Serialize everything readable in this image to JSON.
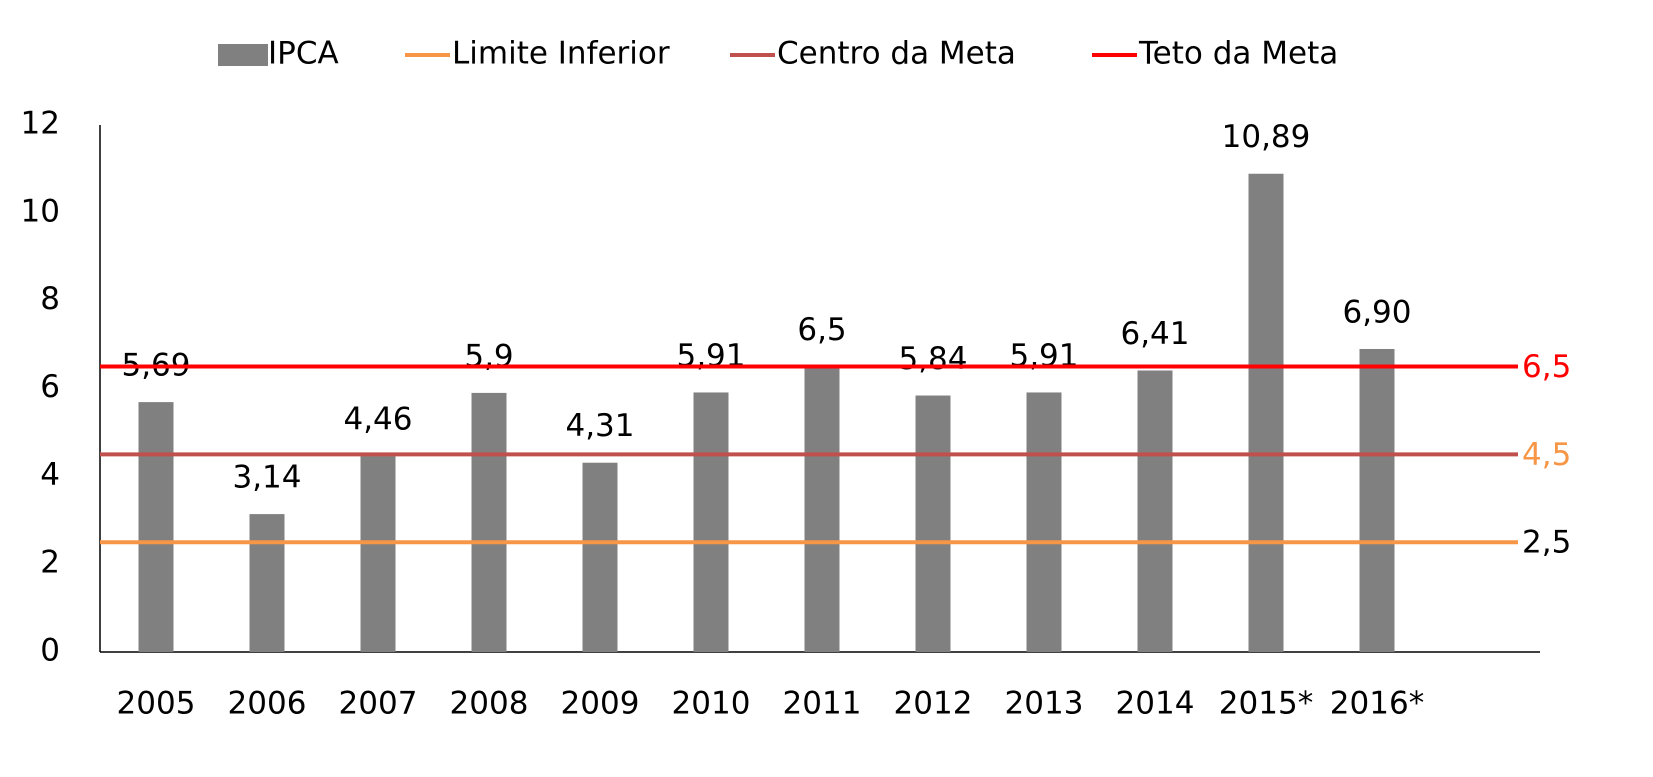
{
  "chart_data": {
    "type": "bar-line",
    "categories": [
      "2005",
      "2006",
      "2007",
      "2008",
      "2009",
      "2010",
      "2011",
      "2012",
      "2013",
      "2014",
      "2015*",
      "2016*"
    ],
    "series": [
      {
        "name": "IPCA",
        "type": "bar",
        "color": "#808080",
        "values": [
          5.69,
          3.14,
          4.46,
          5.9,
          4.31,
          5.91,
          6.5,
          5.84,
          5.91,
          6.41,
          10.89,
          6.9
        ],
        "value_labels": [
          "5,69",
          "3,14",
          "4,46",
          "5,9",
          "4,31",
          "5,91",
          "6,5",
          "5,84",
          "5,91",
          "6,41",
          "10,89",
          "6,90"
        ]
      },
      {
        "name": "Limite Inferior",
        "type": "line",
        "color": "#f79646",
        "values": [
          2.5,
          2.5,
          2.5,
          2.5,
          2.5,
          2.5,
          2.5,
          2.5,
          2.5,
          2.5,
          2.5,
          2.5
        ],
        "value_labels": [
          null,
          null,
          null,
          null,
          null,
          null,
          null,
          null,
          null,
          null,
          null,
          "2,5"
        ],
        "label_color": "#000000"
      },
      {
        "name": "Centro da Meta",
        "type": "line",
        "color": "#c0504d",
        "values": [
          4.5,
          4.5,
          4.5,
          4.5,
          4.5,
          4.5,
          4.5,
          4.5,
          4.5,
          4.5,
          4.5,
          4.5
        ],
        "value_labels": [
          null,
          null,
          null,
          null,
          null,
          null,
          null,
          null,
          null,
          null,
          null,
          "4,5"
        ],
        "label_color": "#f79646"
      },
      {
        "name": "Teto da Meta",
        "type": "line",
        "color": "#ff0000",
        "values": [
          6.5,
          6.5,
          6.5,
          6.5,
          6.5,
          6.5,
          6.5,
          6.5,
          6.5,
          6.5,
          6.5,
          6.5
        ],
        "value_labels": [
          null,
          null,
          null,
          null,
          null,
          null,
          null,
          null,
          null,
          null,
          null,
          "6,5"
        ],
        "label_color": "#ff0000"
      }
    ],
    "ylim": [
      0,
      12
    ],
    "yticks": [
      0,
      2,
      4,
      6,
      8,
      10,
      12
    ],
    "grid": false,
    "legend": "top"
  }
}
